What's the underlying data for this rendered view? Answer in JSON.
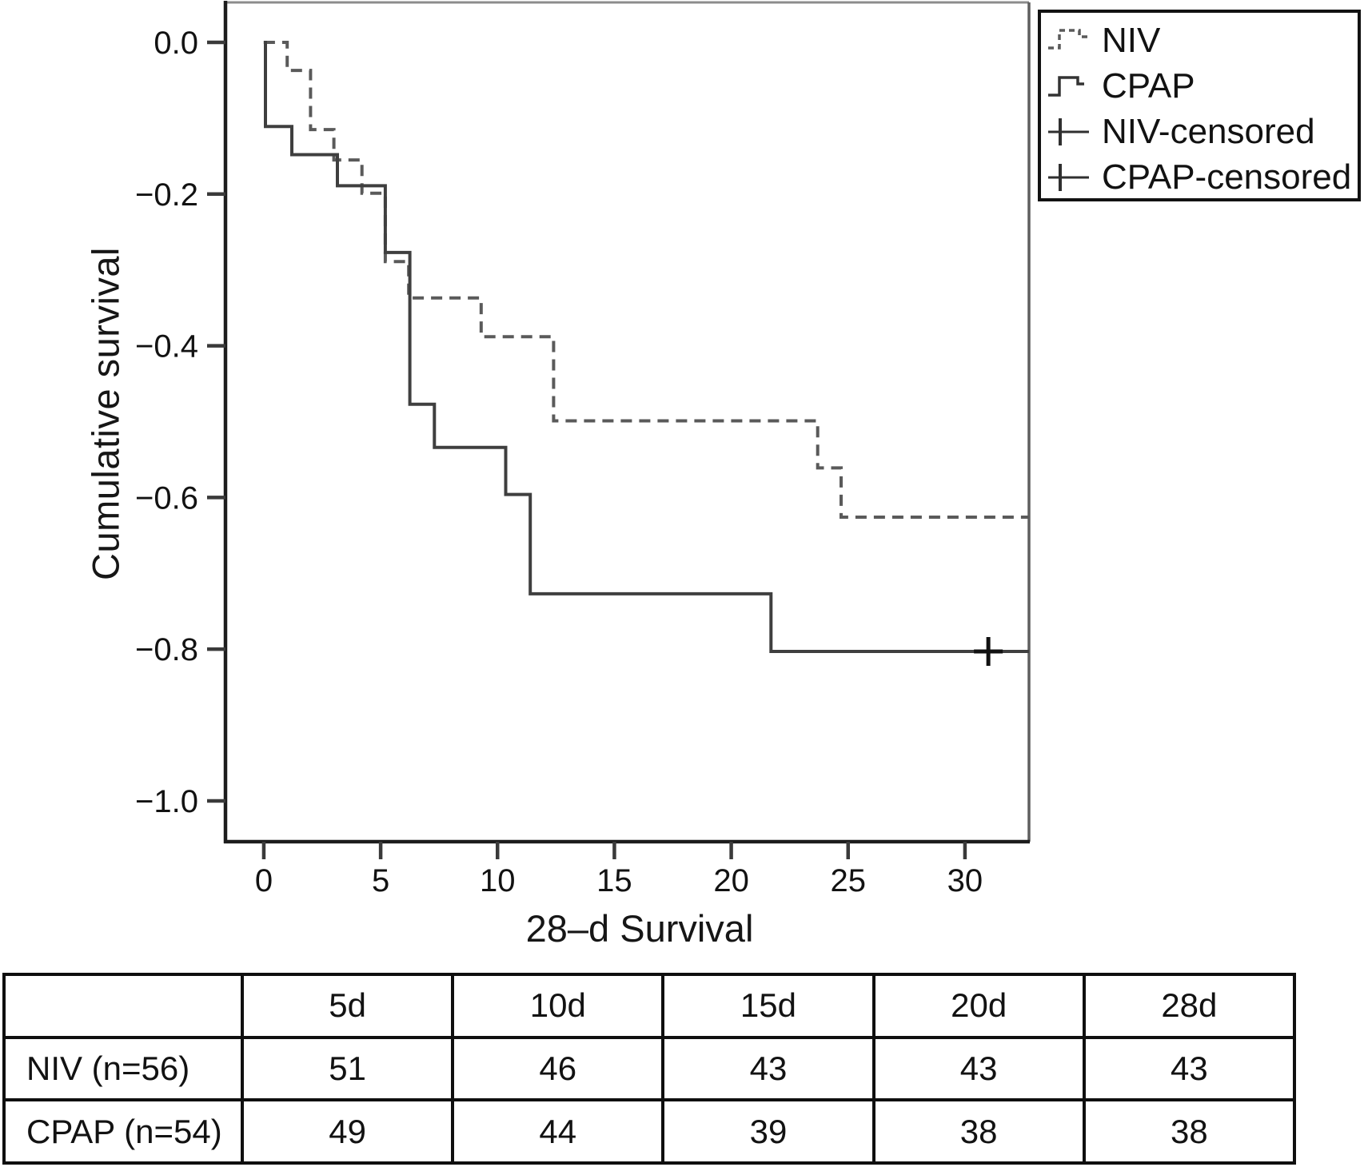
{
  "chart_data": {
    "type": "line",
    "subtype": "kaplan-meier-step",
    "title": "",
    "xlabel": "28–d Survival",
    "ylabel": "Cumulative survival",
    "xlim": [
      -1.64,
      32.74
    ],
    "ylim": [
      -1.0538,
      0.0527
    ],
    "grid": false,
    "legend_position": "outside-top-right",
    "x_ticks": [
      {
        "t": 0,
        "label": "0"
      },
      {
        "t": 5,
        "label": "5"
      },
      {
        "t": 10,
        "label": "10"
      },
      {
        "t": 15,
        "label": "15"
      },
      {
        "t": 20,
        "label": "20"
      },
      {
        "t": 25,
        "label": "25"
      },
      {
        "t": 30,
        "label": "30"
      }
    ],
    "y_ticks": [
      {
        "v": 0.0,
        "label": "0.0"
      },
      {
        "v": -0.2,
        "label": "−0.2"
      },
      {
        "v": -0.4,
        "label": "−0.4"
      },
      {
        "v": -0.6,
        "label": "−0.6"
      },
      {
        "v": -0.8,
        "label": "−0.8"
      },
      {
        "v": -1.0,
        "label": "−1.0"
      }
    ],
    "series": [
      {
        "name": "NIV",
        "style": "dashed",
        "color": "#5a5a5a",
        "t_end": 32.74,
        "points": [
          [
            0,
            0.0
          ],
          [
            1,
            -0.037
          ],
          [
            2,
            -0.115
          ],
          [
            3,
            -0.155
          ],
          [
            4.2,
            -0.199
          ],
          [
            5.2,
            -0.289
          ],
          [
            6.2,
            -0.337
          ],
          [
            9.3,
            -0.388
          ],
          [
            12.4,
            -0.499
          ],
          [
            23.7,
            -0.561
          ],
          [
            24.7,
            -0.626
          ]
        ],
        "censored": []
      },
      {
        "name": "CPAP",
        "style": "solid",
        "color": "#3f3f3f",
        "t_end": 32.74,
        "points": [
          [
            0,
            0.0
          ],
          [
            0.07,
            -0.111
          ],
          [
            1.2,
            -0.148
          ],
          [
            3.15,
            -0.189
          ],
          [
            5.2,
            -0.277
          ],
          [
            6.25,
            -0.477
          ],
          [
            7.3,
            -0.534
          ],
          [
            10.35,
            -0.596
          ],
          [
            11.4,
            -0.727
          ],
          [
            21.7,
            -0.803
          ]
        ],
        "censored": [
          [
            31.0,
            -0.803
          ]
        ]
      }
    ]
  },
  "legend": {
    "entries": [
      {
        "label": "NIV"
      },
      {
        "label": "CPAP"
      },
      {
        "label": "NIV-censored"
      },
      {
        "label": "CPAP-censored"
      }
    ]
  },
  "risk_table": {
    "columns": [
      "",
      "5d",
      "10d",
      "15d",
      "20d",
      "28d"
    ],
    "rows": [
      {
        "label": "NIV (n=56)",
        "values": [
          "51",
          "46",
          "43",
          "43",
          "43"
        ]
      },
      {
        "label": "CPAP (n=54)",
        "values": [
          "49",
          "44",
          "39",
          "38",
          "38"
        ]
      }
    ]
  }
}
